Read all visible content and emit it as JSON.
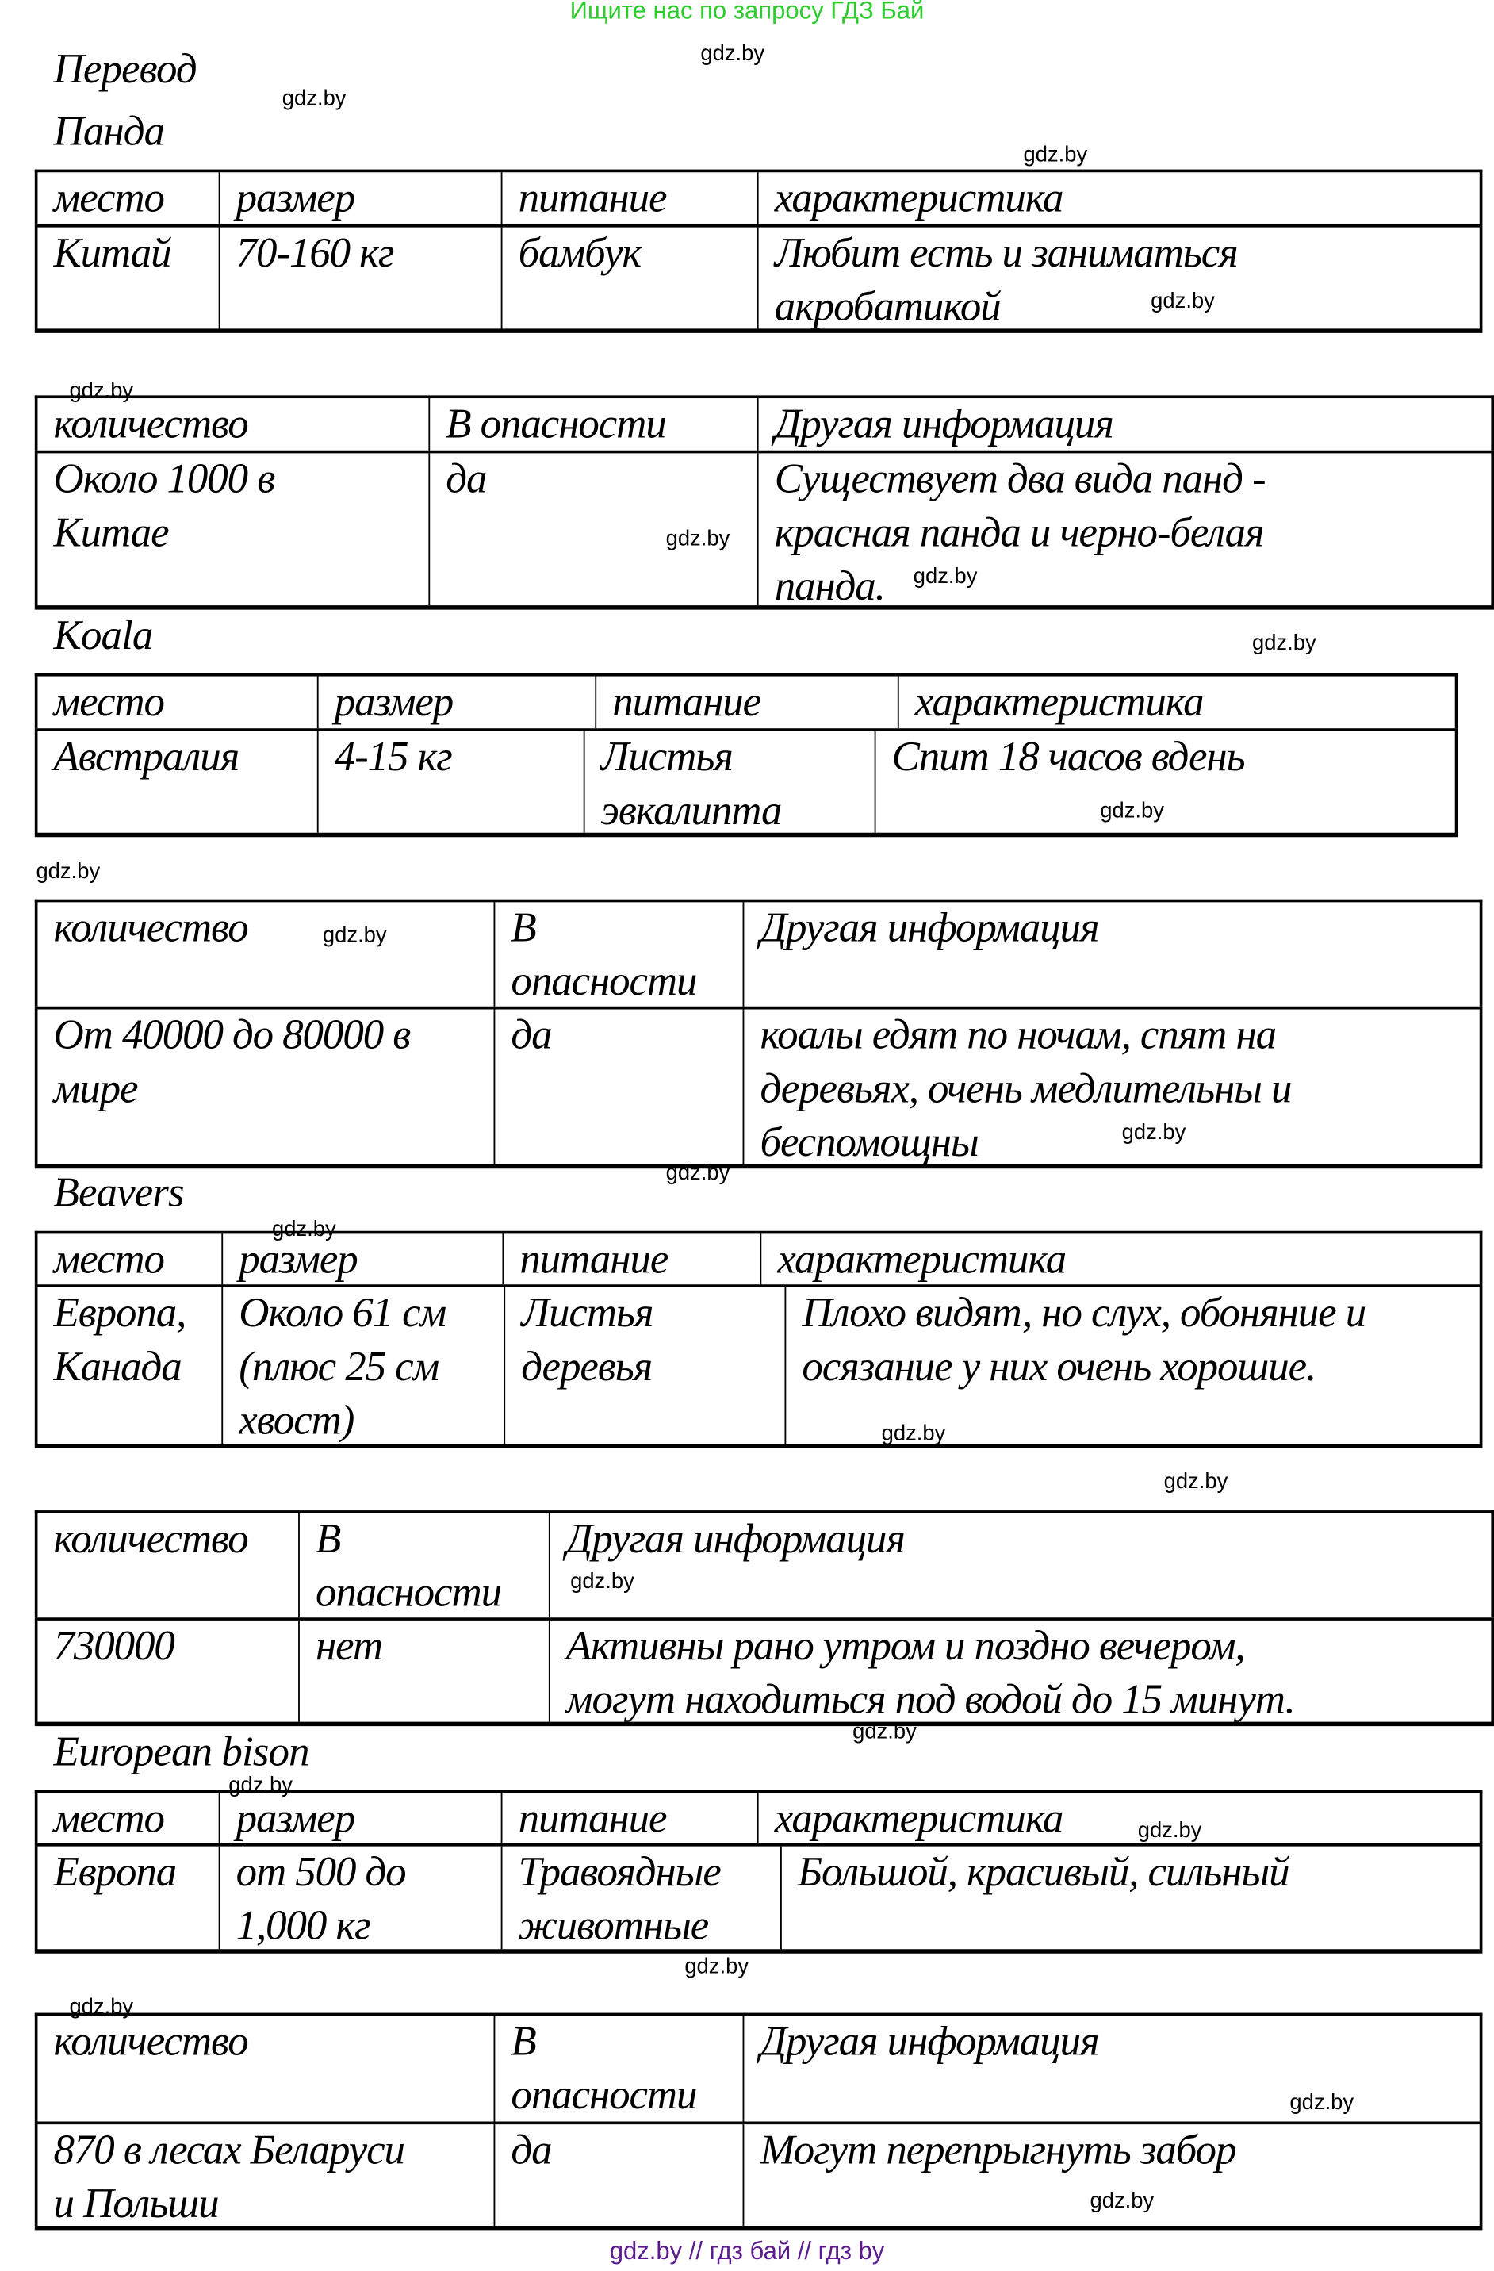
{
  "banner": "Ищите нас по запросу ГДЗ Бай",
  "footer": "gdz.by  //  гдз бай  //  гдз by",
  "heading": "Перевод",
  "sections": [
    {
      "title": "Панда",
      "t1": {
        "header": [
          "место",
          "размер",
          "питание",
          "характеристика"
        ],
        "body": [
          "Китай",
          "70-160 кг",
          "бамбук",
          "Любит есть и заниматься\nакробатикой"
        ]
      },
      "t2": {
        "header": [
          "количество",
          "В опасности",
          "Другая информация"
        ],
        "body": [
          "Около 1000 в\nКитае",
          "да",
          "Существует два вида панд -\nкрасная панда и черно-белая\nпанда."
        ]
      }
    },
    {
      "title": "Koala",
      "t1": {
        "header": [
          "место",
          "размер",
          "питание",
          "характеристика"
        ],
        "body": [
          "Австралия",
          "4-15 кг",
          "Листья\nэвкалипта",
          "Спит 18 часов вдень"
        ]
      },
      "t2": {
        "header": [
          "количество",
          "В\nопасности",
          "Другая информация"
        ],
        "body": [
          "От 40000 до 80000 в\nмире",
          "да",
          "коалы едят по ночам, спят на\nдеревьях, очень медлительны и\nбеспомощны"
        ]
      }
    },
    {
      "title": "Beavers",
      "t1": {
        "header": [
          "место",
          "размер",
          "питание",
          "характеристика"
        ],
        "body": [
          "Европа,\nКанада",
          "Около 61 см\n(плюс 25 см\nхвост)",
          "Листья\nдеревья",
          "Плохо видят, но слух, обоняние и\nосязание у них очень хорошие."
        ]
      },
      "t2": {
        "header": [
          "количество",
          "В\nопасности",
          "Другая информация"
        ],
        "body": [
          " 730000",
          "нет",
          "Активны рано утром и поздно вечером,\nмогут находиться под водой до 15 минут."
        ]
      }
    },
    {
      "title": "European bison",
      "t1": {
        "header": [
          "место",
          "размер",
          "питание",
          "характеристика"
        ],
        "body": [
          "Европа",
          "от  500 до\n1,000  кг",
          "Травоядные\nживотные",
          "Большой, красивый, сильный"
        ]
      },
      "t2": {
        "header": [
          "количество",
          "В\nопасности",
          "Другая информация"
        ],
        "body": [
          "870 в лесах Беларуси\nи Польши",
          " да",
          "Могут перепрыгнуть забор"
        ]
      }
    }
  ],
  "watermarks": [
    "gdz.by",
    "gdz.by",
    "gdz.by",
    "gdz.by",
    "gdz.by",
    "gdz.by",
    "gdz.by",
    "gdz.by",
    "gdz.by",
    "gdz.by",
    "gdz.by",
    "gdz.by",
    "gdz.by",
    "gdz.by",
    "gdz.by",
    "gdz.by",
    "gdz.by",
    "gdz.by",
    "gdz.by",
    "gdz.by",
    "gdz.by",
    "gdz.by",
    "gdz.by",
    "gdz.by"
  ]
}
